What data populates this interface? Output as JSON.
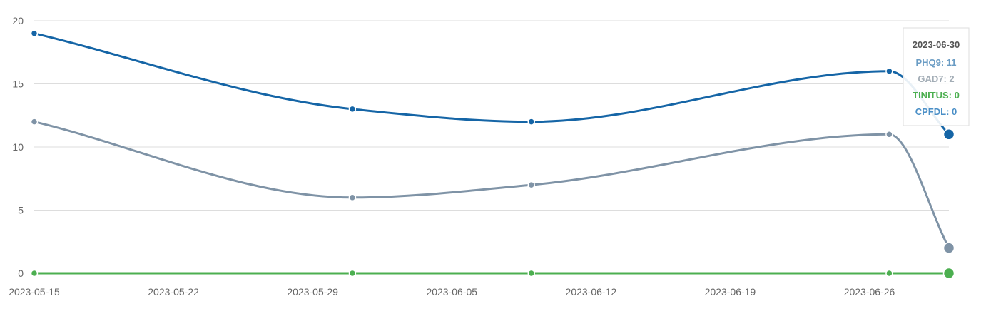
{
  "chart_data": {
    "type": "line",
    "x": [
      "2023-05-15",
      "2023-05-31",
      "2023-06-09",
      "2023-06-27",
      "2023-06-30"
    ],
    "xticks": [
      "2023-05-15",
      "2023-05-22",
      "2023-05-29",
      "2023-06-05",
      "2023-06-12",
      "2023-06-19",
      "2023-06-26"
    ],
    "yticks": [
      0,
      5,
      10,
      15,
      20
    ],
    "ylim": [
      0,
      20
    ],
    "xlim": [
      "2023-05-15",
      "2023-06-30"
    ],
    "grid": true,
    "series": [
      {
        "name": "PHQ9",
        "color": "#1565a6",
        "values": [
          19,
          13,
          12,
          16,
          11
        ]
      },
      {
        "name": "GAD7",
        "color": "#7f93a6",
        "values": [
          12,
          6,
          7,
          11,
          2
        ]
      },
      {
        "name": "TINITUS",
        "color": "#4caf50",
        "values": [
          0,
          0,
          0,
          0,
          0
        ]
      },
      {
        "name": "CPFDL",
        "color": "#4a8fc7",
        "values": [
          0,
          0,
          0,
          0,
          0
        ]
      }
    ],
    "tooltip": {
      "date": "2023-06-30",
      "items": [
        {
          "label": "PHQ9: 11",
          "color": "#6a9cc4"
        },
        {
          "label": "GAD7: 2",
          "color": "#a3adb6"
        },
        {
          "label": "TINITUS: 0",
          "color": "#4caf50"
        },
        {
          "label": "CPFDL: 0",
          "color": "#4a8fc7"
        }
      ]
    }
  }
}
